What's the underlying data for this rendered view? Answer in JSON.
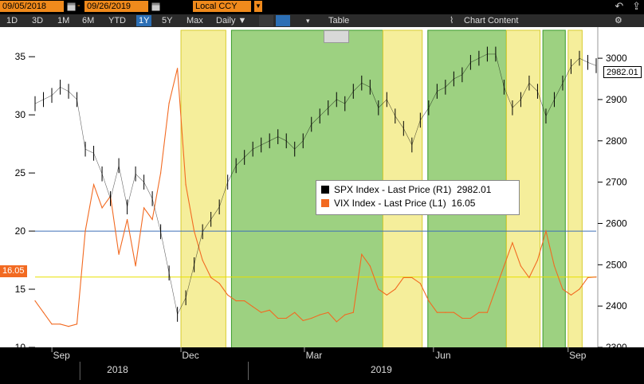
{
  "toolbar_top": {
    "start_date": "09/05/2018",
    "end_date": "09/26/2019",
    "separator": "-",
    "currency": "Local CCY"
  },
  "toolbar": {
    "periods": [
      "1D",
      "3D",
      "1M",
      "6M",
      "YTD",
      "1Y",
      "5Y",
      "Max"
    ],
    "active_period": "1Y",
    "frequency": "Daily",
    "table_label": "Table",
    "chart_content_label": "Chart Content"
  },
  "chart_data": {
    "type": "line",
    "left_axis": {
      "ticks": [
        "10",
        "15",
        "20",
        "25",
        "30",
        "35"
      ],
      "range": [
        10,
        37
      ]
    },
    "right_axis": {
      "ticks": [
        "2300",
        "2400",
        "2500",
        "2600",
        "2700",
        "2800",
        "2900",
        "3000"
      ],
      "range": [
        2300,
        3060
      ]
    },
    "x_ticks": [
      "Sep",
      "Dec",
      "Mar",
      "Jun",
      "Sep"
    ],
    "year_labels": [
      "2018",
      "2019"
    ],
    "series": [
      {
        "name": "SPX Index - Last Price (R1)",
        "last": "2982.01",
        "color": "#000000",
        "x": [
          0,
          4,
          8,
          12,
          16,
          20,
          24,
          28,
          32,
          36,
          40,
          44,
          48,
          52,
          56,
          60,
          64,
          68,
          72,
          76,
          80,
          84,
          88,
          92,
          96,
          100,
          104,
          108,
          112,
          116,
          120,
          124,
          128,
          132,
          136,
          140,
          144,
          148,
          152,
          156,
          160,
          164,
          168,
          172,
          176,
          180,
          184,
          188,
          192,
          196,
          200,
          204,
          208,
          212,
          216,
          220,
          224,
          228,
          232,
          236,
          240,
          244,
          248,
          252,
          256,
          260,
          264,
          268
        ],
        "values": [
          2890,
          2900,
          2910,
          2930,
          2920,
          2900,
          2780,
          2770,
          2720,
          2660,
          2740,
          2640,
          2720,
          2700,
          2660,
          2580,
          2480,
          2380,
          2420,
          2500,
          2580,
          2610,
          2640,
          2700,
          2740,
          2760,
          2780,
          2790,
          2800,
          2810,
          2800,
          2780,
          2800,
          2840,
          2860,
          2880,
          2900,
          2890,
          2920,
          2940,
          2930,
          2880,
          2900,
          2860,
          2830,
          2790,
          2850,
          2880,
          2920,
          2930,
          2950,
          2960,
          2990,
          3000,
          3010,
          3010,
          2930,
          2880,
          2900,
          2940,
          2920,
          2860,
          2900,
          2940,
          2980,
          3000,
          2990,
          2982
        ]
      },
      {
        "name": "VIX Index - Last Price (L1)",
        "last": "16.05",
        "color": "#f26a21",
        "x": [
          0,
          4,
          8,
          12,
          16,
          20,
          24,
          28,
          32,
          36,
          40,
          44,
          48,
          52,
          56,
          60,
          64,
          68,
          72,
          76,
          80,
          84,
          88,
          92,
          96,
          100,
          104,
          108,
          112,
          116,
          120,
          124,
          128,
          132,
          136,
          140,
          144,
          148,
          152,
          156,
          160,
          164,
          168,
          172,
          176,
          180,
          184,
          188,
          192,
          196,
          200,
          204,
          208,
          212,
          216,
          220,
          224,
          228,
          232,
          236,
          240,
          244,
          248,
          252,
          256,
          260,
          264,
          268
        ],
        "values": [
          14,
          13,
          12,
          12,
          11.8,
          12,
          20,
          24,
          22,
          23,
          18,
          21,
          17,
          22,
          21,
          25,
          31,
          34,
          24,
          20,
          17.5,
          16,
          15.5,
          14.5,
          14,
          14,
          13.5,
          13,
          13.2,
          12.5,
          12.5,
          13,
          12.3,
          12.5,
          12.8,
          13,
          12.2,
          12.8,
          13,
          18,
          17,
          15,
          14.5,
          15,
          16,
          16,
          15.5,
          14,
          13,
          13,
          13,
          12.5,
          12.5,
          13,
          13,
          15,
          17,
          19,
          17,
          16,
          17.5,
          20,
          17,
          15,
          14.5,
          15,
          16,
          16.05
        ]
      }
    ],
    "highlight_bands": [
      {
        "from": 0.26,
        "to": 0.34,
        "color": "#f2e87a"
      },
      {
        "from": 0.35,
        "to": 0.62,
        "color": "#7cc257"
      },
      {
        "from": 0.62,
        "to": 0.69,
        "color": "#f2e87a"
      },
      {
        "from": 0.7,
        "to": 0.84,
        "color": "#7cc257"
      },
      {
        "from": 0.84,
        "to": 0.9,
        "color": "#f2e87a"
      },
      {
        "from": 0.905,
        "to": 0.945,
        "color": "#7cc257"
      },
      {
        "from": 0.95,
        "to": 0.975,
        "color": "#f2e87a"
      }
    ],
    "reference_lines": [
      {
        "value": 20,
        "axis": "left",
        "color": "#3e6fb8"
      },
      {
        "value": 16.05,
        "axis": "left",
        "color": "#e8e000"
      }
    ]
  }
}
